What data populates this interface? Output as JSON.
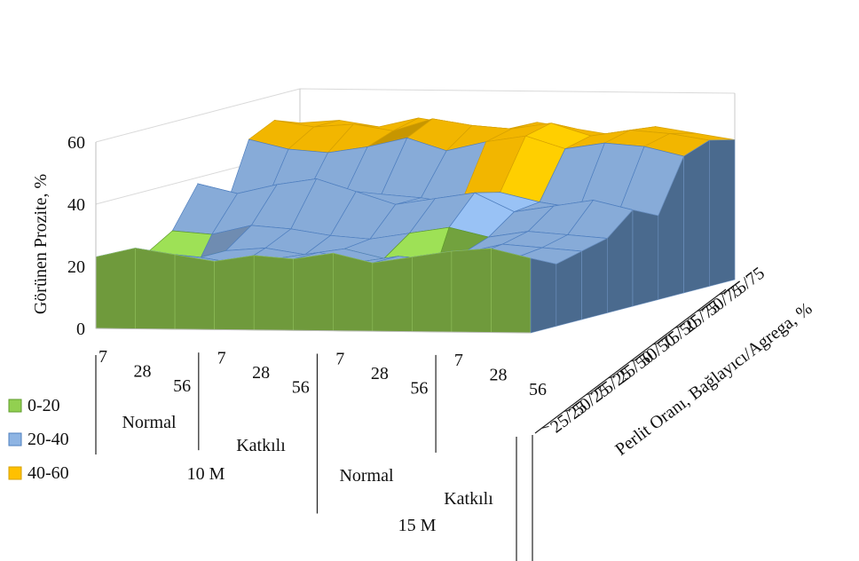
{
  "chart_data": {
    "type": "surface3d",
    "z_axis": {
      "label": "Görünen Prozite, %",
      "ticks": [
        "0",
        "20",
        "40",
        "60"
      ],
      "range": [
        0,
        60
      ]
    },
    "depth_axis": {
      "label": "Perlit Oranı, Bağlayıcı/Agrega, %",
      "categories": [
        "25/25",
        "50/25",
        "75/25",
        "25/50",
        "50/50",
        "75/50",
        "25/75",
        "50/75",
        "75/75"
      ]
    },
    "x_axis": {
      "day_labels": [
        "7",
        "28",
        "56",
        "7",
        "28",
        "56",
        "7",
        "28",
        "56",
        "7",
        "28",
        "56"
      ],
      "group_labels": [
        "Normal",
        "Katkılı",
        "Normal",
        "Katkılı"
      ],
      "super_group_labels": [
        "10 M",
        "15 M"
      ]
    },
    "legend": [
      {
        "label": "0-20",
        "color": "#92D050"
      },
      {
        "label": "20-40",
        "color": "#8EB4E3"
      },
      {
        "label": "40-60",
        "color": "#FFC000"
      }
    ],
    "legend_position": "left",
    "bands": [
      [
        0,
        20
      ],
      [
        20,
        40
      ],
      [
        40,
        60
      ]
    ],
    "band_colors": [
      "#92D050",
      "#8EB4E3",
      "#FFC000"
    ],
    "values": [
      [
        23,
        26,
        24,
        22,
        24,
        23,
        25,
        22,
        24,
        26,
        27,
        24
      ],
      [
        22,
        20,
        21,
        19,
        21,
        23,
        20,
        22,
        21,
        23,
        22,
        20
      ],
      [
        20,
        9,
        21,
        22,
        20,
        22,
        19,
        4,
        21,
        24,
        23,
        22
      ],
      [
        25,
        24,
        27,
        26,
        24,
        23,
        25,
        27,
        24,
        26,
        25,
        24
      ],
      [
        38,
        35,
        38,
        40,
        36,
        32,
        34,
        36,
        30,
        32,
        34,
        31
      ],
      [
        26,
        28,
        30,
        31,
        33,
        32,
        30,
        34,
        31,
        29,
        28,
        27
      ],
      [
        48,
        45,
        44,
        46,
        49,
        45,
        48,
        50,
        46,
        48,
        47,
        44
      ],
      [
        52,
        50,
        51,
        49,
        53,
        51,
        50,
        52,
        48,
        50,
        49,
        47
      ],
      [
        49,
        50,
        48,
        51,
        49,
        47,
        50,
        48,
        46,
        49,
        47,
        45
      ]
    ]
  }
}
